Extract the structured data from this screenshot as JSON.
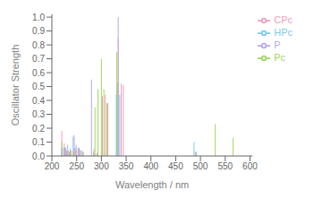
{
  "chart_data": {
    "type": "stem",
    "xlabel": "Wavelength / nm",
    "ylabel": "Oscillator Strength",
    "xlim": [
      200,
      605
    ],
    "ylim": [
      0,
      1.02
    ],
    "xticks": [
      200,
      250,
      300,
      350,
      400,
      450,
      500,
      550,
      600
    ],
    "yticks": [
      {
        "value": 0,
        "label": "0.0"
      },
      0.1,
      0.2,
      0.3,
      0.4,
      0.5,
      0.6,
      0.7,
      0.8,
      0.9,
      {
        "value": 1,
        "label": "1.0"
      }
    ],
    "legend": "upper right",
    "grid": false,
    "series": [
      {
        "name": "HPc",
        "color": "#80c8f0",
        "x": [
          220,
          224,
          228,
          232,
          237,
          243,
          247,
          253,
          258,
          284,
          291,
          330,
          333,
          337,
          487,
          492
        ],
        "values": [
          0.06,
          0.06,
          0.06,
          0.08,
          0.05,
          0.14,
          0.06,
          0.06,
          0.04,
          0.03,
          0.02,
          0.44,
          0.53,
          0.44,
          0.1,
          0.03
        ]
      },
      {
        "name": "CPc",
        "color": "#f0a0b8",
        "x": [
          220,
          225,
          228,
          233,
          237,
          243,
          247,
          253,
          260,
          285,
          291,
          302,
          308,
          313,
          334,
          340,
          344,
          490
        ],
        "values": [
          0.18,
          0.09,
          0.05,
          0.04,
          0.03,
          0.04,
          0.05,
          0.05,
          0.04,
          0.05,
          0.02,
          0.43,
          0.44,
          0.38,
          0.85,
          0.52,
          0.51,
          0.03
        ]
      },
      {
        "name": "Pc",
        "color": "#a0d860",
        "x": [
          220,
          225,
          230,
          235,
          239,
          244,
          249,
          256,
          263,
          287,
          293,
          300,
          305,
          311,
          331,
          530,
          566
        ],
        "values": [
          0.1,
          0.06,
          0.03,
          0.03,
          0.04,
          0.03,
          0.04,
          0.05,
          0.03,
          0.35,
          0.48,
          0.7,
          0.48,
          0.38,
          0.75,
          0.23,
          0.13
        ]
      },
      {
        "name": "P",
        "color": "#b8a8e8",
        "x": [
          221,
          226,
          230,
          236,
          245,
          249,
          255,
          263,
          280,
          334
        ],
        "values": [
          0.06,
          0.06,
          0.04,
          0.03,
          0.15,
          0.08,
          0.06,
          0.03,
          0.55,
          1.0
        ]
      }
    ]
  }
}
